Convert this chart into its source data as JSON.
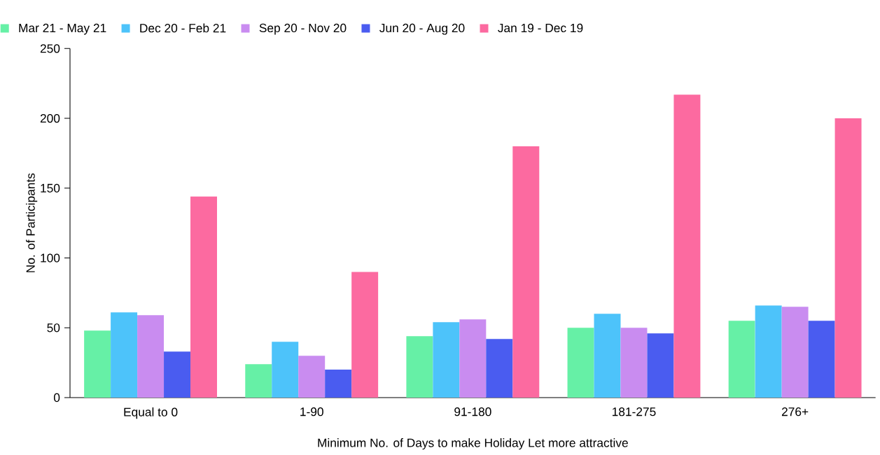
{
  "chart_data": {
    "type": "bar",
    "xlabel": "Minimum  No. of Days to make Holiday Let more attractive",
    "ylabel": "No. of Participants",
    "categories": [
      "Equal to 0",
      "1-90",
      "91-180",
      "181-275",
      "276+"
    ],
    "series": [
      {
        "name": "Mar 21 - May 21",
        "color": "#66f0a6",
        "values": [
          48,
          24,
          44,
          50,
          55
        ]
      },
      {
        "name": "Dec 20 - Feb 21",
        "color": "#4dc3fa",
        "values": [
          61,
          40,
          54,
          60,
          66
        ]
      },
      {
        "name": "Sep 20 - Nov 20",
        "color": "#c98cf0",
        "values": [
          59,
          30,
          56,
          50,
          65
        ]
      },
      {
        "name": "Jun 20 - Aug 20",
        "color": "#4a5cf0",
        "values": [
          33,
          20,
          42,
          46,
          55
        ]
      },
      {
        "name": "Jan 19 - Dec 19",
        "color": "#fc6aa0",
        "values": [
          144,
          90,
          180,
          217,
          200
        ]
      }
    ],
    "ylim": [
      0,
      250
    ],
    "yticks": [
      0,
      50,
      100,
      150,
      200,
      250
    ],
    "legend": "top left"
  }
}
